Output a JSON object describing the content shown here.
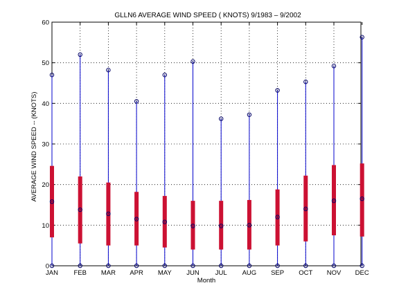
{
  "chart_data": {
    "type": "box",
    "title": "GLLN6  AVERAGE WIND SPEED ( KNOTS) 9/1983 – 9/2002",
    "xlabel": "Month",
    "ylabel": "AVERAGE WIND SPEED -- (KNOTS)",
    "categories": [
      "JAN",
      "FEB",
      "MAR",
      "APR",
      "MAY",
      "JUN",
      "JUL",
      "AUG",
      "SEP",
      "OCT",
      "NOV",
      "DEC"
    ],
    "ylim": [
      0,
      60
    ],
    "yticks": [
      0,
      10,
      20,
      30,
      40,
      50,
      60
    ],
    "grid": true,
    "series": [
      {
        "stat": "max",
        "values": [
          47,
          52,
          48.2,
          40.5,
          47,
          50.3,
          36.2,
          37.2,
          43.2,
          45.3,
          49.2,
          56.3
        ]
      },
      {
        "stat": "upper",
        "values": [
          24.6,
          22,
          20.5,
          18.2,
          17.2,
          16,
          16,
          16.2,
          18.8,
          22.2,
          24.8,
          25.2
        ]
      },
      {
        "stat": "mean",
        "values": [
          15.8,
          13.8,
          12.8,
          11.5,
          10.8,
          9.8,
          9.8,
          10,
          12,
          14,
          16,
          16.5
        ]
      },
      {
        "stat": "lower",
        "values": [
          7,
          5.5,
          5,
          5,
          4.5,
          4,
          4,
          4,
          5,
          6,
          7.5,
          7.2
        ]
      },
      {
        "stat": "min",
        "values": [
          0,
          0,
          0,
          0,
          0,
          0,
          0,
          0,
          0,
          0,
          0,
          0
        ]
      }
    ],
    "colors": {
      "whisker": "#0000cc",
      "box": "#cc1133",
      "marker": "#000066",
      "grid": "#000000"
    }
  }
}
